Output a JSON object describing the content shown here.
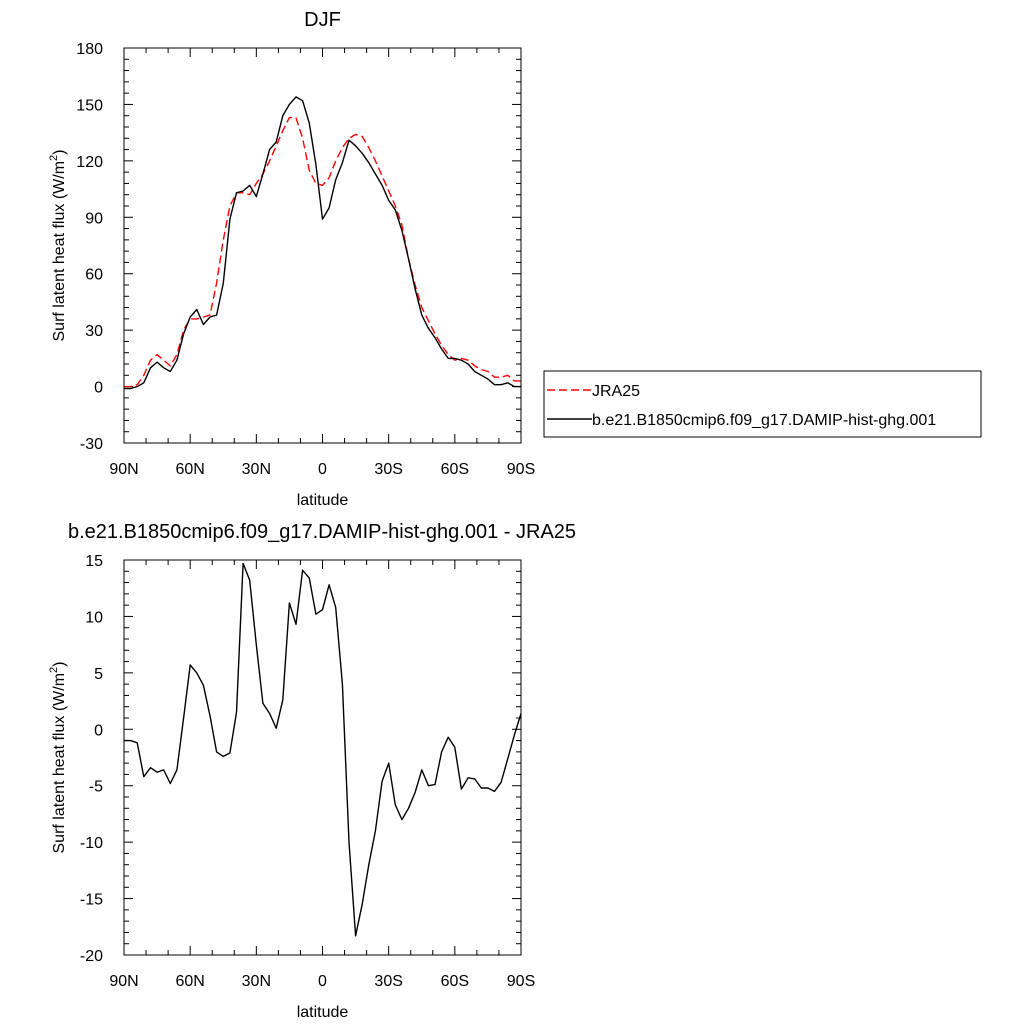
{
  "chart_data": [
    {
      "type": "line",
      "title": "DJF",
      "xlabel": "latitude",
      "ylabel": "Surf latent heat flux (W/m",
      "ylabel_superscript": "2",
      "ylabel_suffix": ")",
      "xlim": [
        90,
        -90
      ],
      "ylim": [
        -30,
        180
      ],
      "x_ticks": [
        90,
        60,
        30,
        0,
        -30,
        -60,
        -90
      ],
      "x_tick_labels": [
        "90N",
        "60N",
        "30N",
        "0",
        "30S",
        "60S",
        "90S"
      ],
      "y_ticks": [
        -30,
        0,
        30,
        60,
        90,
        120,
        150,
        180
      ],
      "y_tick_labels": [
        "-30",
        "0",
        "30",
        "60",
        "90",
        "120",
        "150",
        "180"
      ],
      "legend_position": "right, outside plot",
      "series": [
        {
          "name": "JRA25",
          "color": "#ff0000",
          "dash": true,
          "x": [
            90,
            87,
            84,
            81,
            78,
            75,
            72,
            69,
            66,
            63,
            60,
            57,
            54,
            51,
            48,
            45,
            42,
            39,
            36,
            33,
            30,
            27,
            24,
            21,
            18,
            15,
            12,
            9,
            6,
            3,
            0,
            -3,
            -6,
            -9,
            -12,
            -15,
            -18,
            -21,
            -24,
            -27,
            -30,
            -33,
            -36,
            -39,
            -42,
            -45,
            -48,
            -51,
            -54,
            -57,
            -60,
            -63,
            -66,
            -69,
            -72,
            -75,
            -78,
            -81,
            -84,
            -87,
            -90
          ],
          "y": [
            0,
            0,
            1,
            6,
            14,
            17,
            14,
            11,
            17,
            30,
            36,
            36,
            37,
            38,
            55,
            78,
            96,
            103,
            103,
            102,
            108,
            113,
            120,
            128,
            136,
            143,
            143,
            132,
            115,
            108,
            107,
            111,
            120,
            127,
            132,
            134,
            133,
            127,
            120,
            112,
            104,
            96,
            86,
            68,
            54,
            42,
            35,
            28,
            22,
            17,
            14,
            15,
            14,
            11,
            9,
            8,
            5,
            5,
            6,
            3,
            3
          ]
        },
        {
          "name": "b.e21.B1850cmip6.f09_g17.DAMIP-hist-ghg.001",
          "color": "#000000",
          "dash": false,
          "x": [
            90,
            87,
            84,
            81,
            78,
            75,
            72,
            69,
            66,
            63,
            60,
            57,
            54,
            51,
            48,
            45,
            42,
            39,
            36,
            33,
            30,
            27,
            24,
            21,
            18,
            15,
            12,
            9,
            6,
            3,
            0,
            -3,
            -6,
            -9,
            -12,
            -15,
            -18,
            -21,
            -24,
            -27,
            -30,
            -33,
            -36,
            -39,
            -42,
            -45,
            -48,
            -51,
            -54,
            -57,
            -60,
            -63,
            -66,
            -69,
            -72,
            -75,
            -78,
            -81,
            -84,
            -87,
            -90
          ],
          "y": [
            -1,
            -1,
            0,
            2,
            10,
            13,
            10,
            8,
            14,
            28,
            37,
            41,
            33,
            37,
            38,
            55,
            89,
            103,
            104,
            107,
            101,
            113,
            126,
            130,
            144,
            150,
            154,
            152,
            140,
            118,
            89,
            95,
            110,
            119,
            131,
            128,
            124,
            119,
            113,
            107,
            99,
            94,
            83,
            68,
            52,
            38,
            31,
            26,
            20,
            15,
            15,
            14,
            12,
            8,
            6,
            4,
            1,
            1,
            2,
            0,
            0
          ]
        }
      ]
    },
    {
      "type": "line",
      "title": "b.e21.B1850cmip6.f09_g17.DAMIP-hist-ghg.001 - JRA25",
      "xlabel": "latitude",
      "ylabel": "Surf latent heat flux (W/m",
      "ylabel_superscript": "2",
      "ylabel_suffix": ")",
      "xlim": [
        90,
        -90
      ],
      "ylim": [
        -20,
        15
      ],
      "x_ticks": [
        90,
        60,
        30,
        0,
        -30,
        -60,
        -90
      ],
      "x_tick_labels": [
        "90N",
        "60N",
        "30N",
        "0",
        "30S",
        "60S",
        "90S"
      ],
      "y_ticks": [
        -20,
        -15,
        -10,
        -5,
        0,
        5,
        10,
        15
      ],
      "y_tick_labels": [
        "-20",
        "-15",
        "-10",
        "-5",
        "0",
        "5",
        "10",
        "15"
      ],
      "series": [
        {
          "color": "#000000",
          "dash": false,
          "x": [
            90,
            87,
            84,
            81,
            78,
            75,
            72,
            69,
            66,
            63,
            60,
            57,
            54,
            51,
            48,
            45,
            42,
            39,
            36,
            33,
            30,
            27,
            24,
            21,
            18,
            15,
            12,
            9,
            6,
            3,
            0,
            -3,
            -6,
            -9,
            -12,
            -15,
            -18,
            -21,
            -24,
            -27,
            -30,
            -33,
            -36,
            -39,
            -42,
            -45,
            -48,
            -51,
            -54,
            -57,
            -60,
            -63,
            -66,
            -69,
            -72,
            -75,
            -78,
            -81,
            -84,
            -87,
            -90
          ],
          "y": [
            -1,
            -1,
            -1.2,
            -4.2,
            -3.4,
            -3.8,
            -3.6,
            -4.8,
            -3.6,
            1,
            5.7,
            5,
            3.9,
            1.2,
            -2,
            -2.4,
            -2.1,
            1.5,
            14.7,
            13.2,
            7.5,
            2.3,
            1.4,
            0.1,
            2.6,
            11.2,
            9.3,
            14.1,
            13.4,
            10.2,
            10.6,
            12.8,
            10.8,
            4,
            -10,
            -18.3,
            -15.5,
            -12,
            -9,
            -4.6,
            -3,
            -6.7,
            -8,
            -7,
            -5.6,
            -3.6,
            -5,
            -4.9,
            -2,
            -0.7,
            -1.6,
            -5.3,
            -4.3,
            -4.4,
            -5.2,
            -5.2,
            -5.5,
            -4.7,
            -2.6,
            -0.5,
            1.4
          ]
        }
      ]
    }
  ]
}
